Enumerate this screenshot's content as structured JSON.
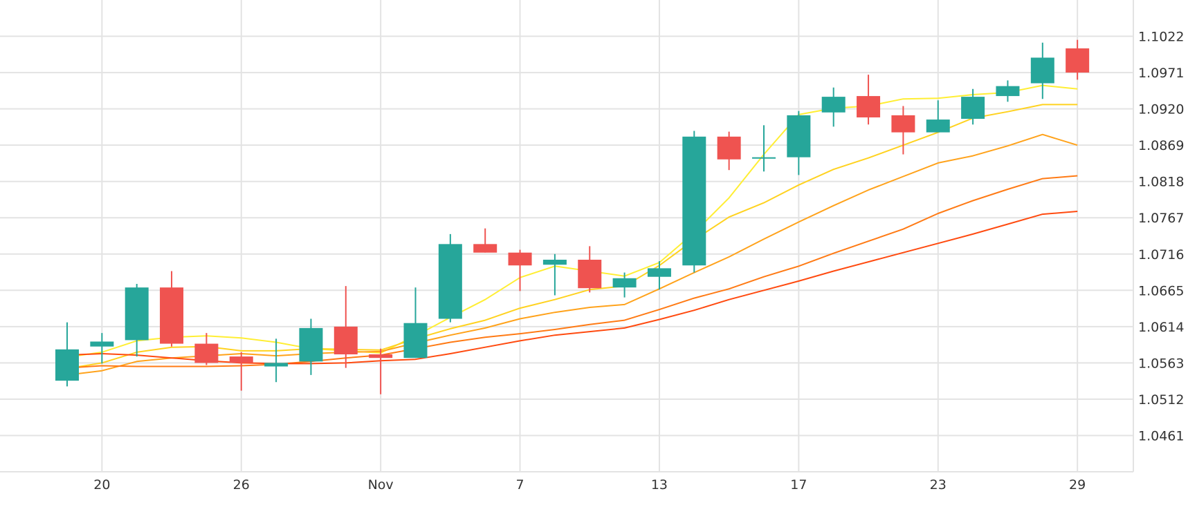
{
  "chart_data": {
    "type": "candlestick",
    "title": "",
    "xlabel": "",
    "ylabel": "",
    "ylim": [
      1.041,
      1.1073
    ],
    "y_ticks": [
      "1.1022",
      "1.0971",
      "1.0920",
      "1.0869",
      "1.0818",
      "1.0767",
      "1.0716",
      "1.0665",
      "1.0614",
      "1.0563",
      "1.0512",
      "1.0461"
    ],
    "x_tick_labels": [
      {
        "label": "20",
        "index": 1
      },
      {
        "label": "26",
        "index": 5
      },
      {
        "label": "Nov",
        "index": 9
      },
      {
        "label": "7",
        "index": 13
      },
      {
        "label": "13",
        "index": 17
      },
      {
        "label": "17",
        "index": 21
      },
      {
        "label": "23",
        "index": 25
      },
      {
        "label": "29",
        "index": 29
      }
    ],
    "grid": true,
    "up_color": "#26a69a",
    "down_color": "#ef5350",
    "candles": [
      {
        "open": 1.0538,
        "high": 1.062,
        "low": 1.053,
        "close": 1.0582
      },
      {
        "open": 1.0586,
        "high": 1.0605,
        "low": 1.0562,
        "close": 1.0593
      },
      {
        "open": 1.0595,
        "high": 1.0674,
        "low": 1.0572,
        "close": 1.0669
      },
      {
        "open": 1.0669,
        "high": 1.0692,
        "low": 1.0586,
        "close": 1.059
      },
      {
        "open": 1.059,
        "high": 1.0605,
        "low": 1.056,
        "close": 1.0563
      },
      {
        "open": 1.0572,
        "high": 1.0578,
        "low": 1.0524,
        "close": 1.0563
      },
      {
        "open": 1.0558,
        "high": 1.0597,
        "low": 1.0536,
        "close": 1.0563
      },
      {
        "open": 1.0565,
        "high": 1.0625,
        "low": 1.0546,
        "close": 1.0612
      },
      {
        "open": 1.0614,
        "high": 1.0671,
        "low": 1.0556,
        "close": 1.0575
      },
      {
        "open": 1.0575,
        "high": 1.0583,
        "low": 1.0519,
        "close": 1.057
      },
      {
        "open": 1.057,
        "high": 1.0669,
        "low": 1.057,
        "close": 1.0619
      },
      {
        "open": 1.0625,
        "high": 1.0744,
        "low": 1.062,
        "close": 1.073
      },
      {
        "open": 1.073,
        "high": 1.0752,
        "low": 1.0718,
        "close": 1.0718
      },
      {
        "open": 1.0718,
        "high": 1.0722,
        "low": 1.0664,
        "close": 1.07
      },
      {
        "open": 1.0701,
        "high": 1.0716,
        "low": 1.0658,
        "close": 1.0708
      },
      {
        "open": 1.0708,
        "high": 1.0727,
        "low": 1.0662,
        "close": 1.0668
      },
      {
        "open": 1.0669,
        "high": 1.069,
        "low": 1.0655,
        "close": 1.0682
      },
      {
        "open": 1.0684,
        "high": 1.0706,
        "low": 1.0666,
        "close": 1.0696
      },
      {
        "open": 1.07,
        "high": 1.0889,
        "low": 1.069,
        "close": 1.0881
      },
      {
        "open": 1.0881,
        "high": 1.0888,
        "low": 1.0834,
        "close": 1.0849
      },
      {
        "open": 1.085,
        "high": 1.0897,
        "low": 1.0832,
        "close": 1.0852
      },
      {
        "open": 1.0852,
        "high": 1.0917,
        "low": 1.0827,
        "close": 1.0911
      },
      {
        "open": 1.0915,
        "high": 1.095,
        "low": 1.0895,
        "close": 1.0937
      },
      {
        "open": 1.0938,
        "high": 1.0968,
        "low": 1.0898,
        "close": 1.0908
      },
      {
        "open": 1.0911,
        "high": 1.0924,
        "low": 1.0856,
        "close": 1.0887
      },
      {
        "open": 1.0887,
        "high": 1.0932,
        "low": 1.0887,
        "close": 1.0905
      },
      {
        "open": 1.0906,
        "high": 1.0948,
        "low": 1.0898,
        "close": 1.0937
      },
      {
        "open": 1.0938,
        "high": 1.096,
        "low": 1.093,
        "close": 1.0952
      },
      {
        "open": 1.0956,
        "high": 1.1013,
        "low": 1.0934,
        "close": 1.0992
      },
      {
        "open": 1.1005,
        "high": 1.1017,
        "low": 1.0961,
        "close": 1.0971
      }
    ],
    "series": [
      {
        "color": "#ffee33",
        "values": [
          1.0571,
          1.0578,
          1.0594,
          1.0599,
          1.0601,
          1.0598,
          1.0592,
          1.0583,
          1.058,
          1.0577,
          1.0601,
          1.0627,
          1.0652,
          1.0683,
          1.0699,
          1.0692,
          1.0685,
          1.0704,
          1.0746,
          1.0795,
          1.0856,
          1.0912,
          1.0921,
          1.0924,
          1.0934,
          1.0935,
          1.094,
          1.0943,
          1.0953,
          1.0948
        ]
      },
      {
        "color": "#ffd21f",
        "values": [
          1.0555,
          1.0563,
          1.0578,
          1.0585,
          1.0586,
          1.058,
          1.058,
          1.0583,
          1.0582,
          1.0581,
          1.0597,
          1.0611,
          1.0623,
          1.064,
          1.0652,
          1.0666,
          1.0671,
          1.07,
          1.0736,
          1.0768,
          1.0788,
          1.0813,
          1.0835,
          1.0851,
          1.0869,
          1.0887,
          1.0907,
          1.0916,
          1.0926,
          1.0926
        ]
      },
      {
        "color": "#ffa21a",
        "values": [
          1.0546,
          1.0552,
          1.0565,
          1.057,
          1.0573,
          1.0576,
          1.0573,
          1.0576,
          1.0578,
          1.0579,
          1.0591,
          1.0602,
          1.0612,
          1.0625,
          1.0634,
          1.0641,
          1.0645,
          1.0667,
          1.069,
          1.0712,
          1.0737,
          1.0761,
          1.0784,
          1.0806,
          1.0825,
          1.0844,
          1.0854,
          1.0868,
          1.0884,
          1.0869
        ]
      },
      {
        "color": "#ff7a14",
        "values": [
          1.0556,
          1.0559,
          1.0558,
          1.0558,
          1.0558,
          1.0559,
          1.0561,
          1.0565,
          1.057,
          1.0574,
          1.0583,
          1.0592,
          1.0599,
          1.0604,
          1.061,
          1.0617,
          1.0623,
          1.0638,
          1.0654,
          1.0667,
          1.0684,
          1.0699,
          1.0717,
          1.0734,
          1.0751,
          1.0773,
          1.0791,
          1.0807,
          1.0822,
          1.0826
        ]
      },
      {
        "color": "#ff4a0f",
        "values": [
          1.0574,
          1.0576,
          1.0574,
          1.057,
          1.0566,
          1.0563,
          1.0562,
          1.0562,
          1.0563,
          1.0566,
          1.0568,
          1.0576,
          1.0585,
          1.0594,
          1.0602,
          1.0607,
          1.0612,
          1.0624,
          1.0637,
          1.0652,
          1.0665,
          1.0678,
          1.0692,
          1.0705,
          1.0718,
          1.0731,
          1.0744,
          1.0758,
          1.0772,
          1.0776
        ]
      }
    ]
  }
}
